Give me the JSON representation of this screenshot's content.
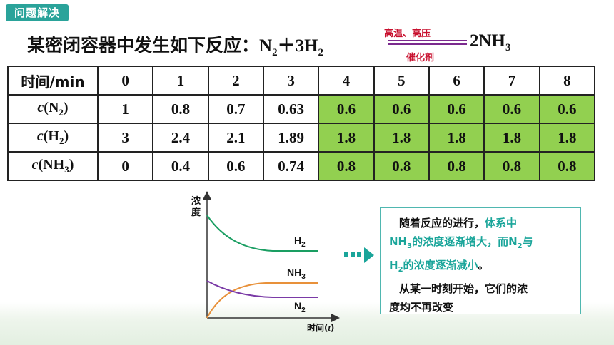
{
  "tag": "问题解决",
  "title": {
    "prefix": "某密闭容器中发生如下反应：",
    "reactant_n2": "N",
    "reactant_n2_sub": "2",
    "plus": "＋3H",
    "reactant_h2_sub": "2",
    "product": "2NH",
    "product_sub": "3",
    "condition_top": "高温、高压",
    "condition_bottom": "催化剂"
  },
  "table": {
    "header": [
      "时间/min",
      "0",
      "1",
      "2",
      "3",
      "4",
      "5",
      "6",
      "7",
      "8"
    ],
    "rows": [
      {
        "label_c": "c",
        "label_species": "N",
        "label_sub": "2",
        "values": [
          "1",
          "0.8",
          "0.7",
          "0.63",
          "0.6",
          "0.6",
          "0.6",
          "0.6",
          "0.6"
        ]
      },
      {
        "label_c": "c",
        "label_species": "H",
        "label_sub": "2",
        "values": [
          "3",
          "2.4",
          "2.1",
          "1.89",
          "1.8",
          "1.8",
          "1.8",
          "1.8",
          "1.8"
        ]
      },
      {
        "label_c": "c",
        "label_species": "NH",
        "label_sub": "3",
        "values": [
          "0",
          "0.4",
          "0.6",
          "0.74",
          "0.8",
          "0.8",
          "0.8",
          "0.8",
          "0.8"
        ]
      }
    ],
    "highlight_color": "#92d050"
  },
  "graph": {
    "ylabel_line1": "浓",
    "ylabel_line2": "度",
    "xlabel": "时间",
    "xlabel_var": "t",
    "curves": [
      {
        "name": "H",
        "sub": "2",
        "color": "#1a9e62"
      },
      {
        "name": "NH",
        "sub": "3",
        "color": "#e8913a"
      },
      {
        "name": "N",
        "sub": "2",
        "color": "#7a3aa6"
      }
    ]
  },
  "note": {
    "line1_a": "随着反应的进行，",
    "line1_b": "体系中",
    "line2_a": "NH",
    "line2_sub": "3",
    "line2_b": "的浓度逐渐增大，而N",
    "line2_sub2": "2",
    "line2_c": "与",
    "line3_a": "H",
    "line3_sub": "2",
    "line3_b": "的浓度逐渐减小",
    "line3_c": "。",
    "line4": "从某一时刻开始，它们的浓",
    "line5": "度均不再改变"
  },
  "colors": {
    "accent": "#2aa39a",
    "condition": "#c8102e",
    "highlight_text": "#1aa59a",
    "arrow": "#1aa59a"
  }
}
